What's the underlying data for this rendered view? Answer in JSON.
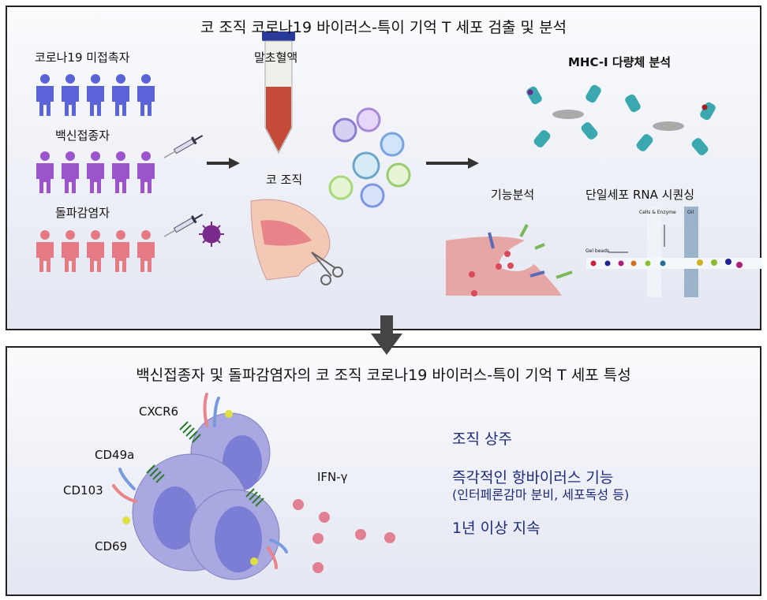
{
  "top_panel": {
    "title": "코 조직 코로나19 바이러스-특이 기억 T 세포 검출 및 분석",
    "groups": [
      {
        "label": "코로나19 미접촉자",
        "color": "#5a63d8"
      },
      {
        "label": "백신접종자",
        "color": "#9a55cc"
      },
      {
        "label": "돌파감염자",
        "color": "#e57a84"
      }
    ],
    "sample_blood": "말초혈액",
    "sample_nose": "코 조직",
    "analysis_mhc": "MHC-I 다량체 분석",
    "analysis_function": "기능분석",
    "analysis_scrna": "단일세포 RNA 시퀀싱",
    "scrna_labels": {
      "cells": "Cells & Enzyme",
      "oil": "Oil",
      "beads": "Gel beads"
    }
  },
  "bottom_panel": {
    "title": "백신접종자 및 돌파감염자의 코 조직 코로나19 바이러스-특이 기억 T 세포 특성",
    "markers": [
      "CXCR6",
      "CD49a",
      "CD103",
      "CD69"
    ],
    "cytokine": "IFN-γ",
    "features": [
      {
        "text": "조직 상주"
      },
      {
        "text": "즉각적인 항바이러스 기능",
        "sub": "(인터페론감마 분비, 세포독성 등)"
      },
      {
        "text": "1년 이상 지속"
      }
    ]
  }
}
